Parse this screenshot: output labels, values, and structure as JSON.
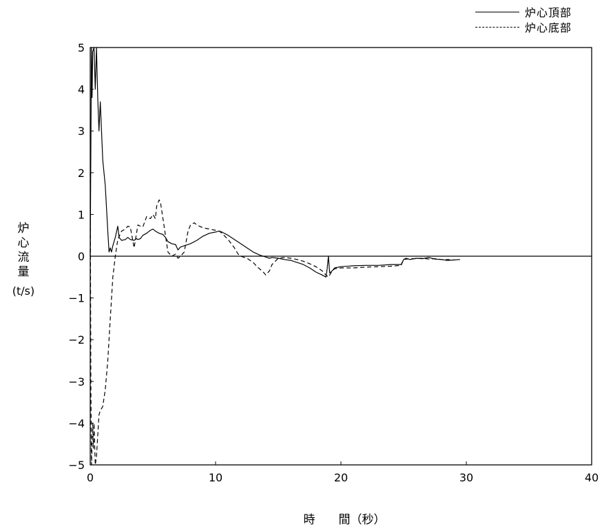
{
  "chart_data": {
    "type": "line",
    "xlabel": "時　　間（秒）",
    "ylabel": "炉心流量",
    "ylabel_unit": "(t/s)",
    "xlim": [
      0,
      40
    ],
    "ylim": [
      -5,
      5
    ],
    "x_ticks": [
      0,
      10,
      20,
      30,
      40
    ],
    "y_ticks": [
      -5,
      -4,
      -3,
      -2,
      -1,
      0,
      1,
      2,
      3,
      4,
      5
    ],
    "grid": false,
    "zero_line": true,
    "legend_position": "top-right",
    "series": [
      {
        "name": "炉心頂部",
        "style": "solid",
        "color": "#000000",
        "x": [
          0,
          0.05,
          0.1,
          0.15,
          0.2,
          0.3,
          0.4,
          0.5,
          0.6,
          0.7,
          0.8,
          1.0,
          1.2,
          1.4,
          1.5,
          1.6,
          1.7,
          1.8,
          2.0,
          2.2,
          2.3,
          2.5,
          2.8,
          3.0,
          3.2,
          3.5,
          3.7,
          3.8,
          4.0,
          4.2,
          4.5,
          4.8,
          5.0,
          5.2,
          5.5,
          5.8,
          6.0,
          6.2,
          6.5,
          6.8,
          7.0,
          7.2,
          7.5,
          8.0,
          8.5,
          9.0,
          9.5,
          10.0,
          10.3,
          10.5,
          11.0,
          11.5,
          12.0,
          12.5,
          13.0,
          13.5,
          14.0,
          14.3,
          14.5,
          15.0,
          15.5,
          16.0,
          16.5,
          17.0,
          17.5,
          18.0,
          18.5,
          18.8,
          18.9,
          19.0,
          19.05,
          19.1,
          19.3,
          19.5,
          20.0,
          21.0,
          22.0,
          23.0,
          24.0,
          24.8,
          25.0,
          25.2,
          25.5,
          26.0,
          26.5,
          27.0,
          27.5,
          28.0,
          28.5,
          29.0,
          29.5
        ],
        "y": [
          0,
          2.5,
          5.0,
          3.8,
          4.9,
          5.0,
          4.0,
          5.0,
          3.8,
          3.0,
          3.7,
          2.3,
          1.7,
          0.6,
          0.1,
          0.2,
          0.1,
          0.25,
          0.45,
          0.72,
          0.45,
          0.38,
          0.4,
          0.45,
          0.4,
          0.38,
          0.42,
          0.4,
          0.42,
          0.5,
          0.55,
          0.62,
          0.65,
          0.6,
          0.55,
          0.52,
          0.45,
          0.35,
          0.3,
          0.28,
          0.15,
          0.22,
          0.25,
          0.3,
          0.38,
          0.48,
          0.55,
          0.58,
          0.6,
          0.58,
          0.5,
          0.4,
          0.3,
          0.2,
          0.1,
          0.03,
          -0.02,
          -0.05,
          -0.03,
          -0.05,
          -0.08,
          -0.1,
          -0.15,
          -0.2,
          -0.28,
          -0.38,
          -0.45,
          -0.5,
          -0.3,
          0.0,
          -0.2,
          -0.4,
          -0.35,
          -0.28,
          -0.25,
          -0.23,
          -0.22,
          -0.22,
          -0.2,
          -0.2,
          -0.08,
          -0.05,
          -0.08,
          -0.05,
          -0.06,
          -0.03,
          -0.07,
          -0.08,
          -0.1,
          -0.09,
          -0.08
        ]
      },
      {
        "name": "炉心底部",
        "style": "dashed",
        "color": "#000000",
        "x": [
          0,
          0.05,
          0.1,
          0.15,
          0.2,
          0.25,
          0.3,
          0.35,
          0.4,
          0.5,
          0.6,
          0.7,
          0.8,
          1.0,
          1.2,
          1.4,
          1.6,
          1.8,
          2.0,
          2.2,
          2.5,
          2.8,
          3.0,
          3.2,
          3.5,
          3.8,
          4.0,
          4.2,
          4.5,
          4.8,
          5.0,
          5.2,
          5.3,
          5.5,
          5.6,
          5.8,
          6.0,
          6.2,
          6.5,
          6.8,
          7.0,
          7.2,
          7.5,
          7.8,
          8.0,
          8.3,
          8.5,
          9.0,
          9.5,
          10.0,
          10.3,
          10.5,
          11.0,
          11.5,
          11.8,
          12.0,
          12.5,
          13.0,
          13.3,
          13.5,
          13.8,
          14.0,
          14.3,
          14.5,
          15.0,
          15.5,
          16.0,
          16.5,
          17.0,
          17.5,
          18.0,
          18.5,
          18.8,
          19.0,
          19.1,
          19.3,
          19.5,
          20.0,
          21.0,
          22.0,
          23.0,
          24.0,
          24.8,
          25.0,
          25.5,
          26.0,
          26.5,
          27.0,
          27.5,
          28.0,
          28.5,
          29.0
        ],
        "y": [
          2.0,
          -3.0,
          -5.0,
          -4.5,
          -4.0,
          -4.6,
          -4.0,
          -4.5,
          -5.0,
          -4.8,
          -4.3,
          -3.8,
          -3.7,
          -3.6,
          -3.2,
          -2.5,
          -1.5,
          -0.5,
          0.0,
          0.4,
          0.6,
          0.65,
          0.72,
          0.7,
          0.2,
          0.75,
          0.72,
          0.7,
          0.95,
          0.9,
          1.0,
          0.9,
          1.2,
          1.35,
          1.3,
          0.9,
          0.5,
          0.1,
          0.0,
          0.05,
          -0.05,
          0.0,
          0.1,
          0.6,
          0.75,
          0.8,
          0.75,
          0.68,
          0.65,
          0.62,
          0.6,
          0.55,
          0.4,
          0.2,
          0.05,
          0.0,
          -0.05,
          -0.15,
          -0.25,
          -0.3,
          -0.38,
          -0.45,
          -0.35,
          -0.2,
          -0.05,
          -0.03,
          -0.05,
          -0.08,
          -0.12,
          -0.18,
          -0.25,
          -0.35,
          -0.45,
          -0.5,
          -0.45,
          -0.35,
          -0.3,
          -0.28,
          -0.28,
          -0.26,
          -0.25,
          -0.24,
          -0.22,
          -0.08,
          -0.06,
          -0.06,
          -0.05,
          -0.07,
          -0.06,
          -0.08,
          -0.08,
          -0.09
        ]
      }
    ]
  }
}
